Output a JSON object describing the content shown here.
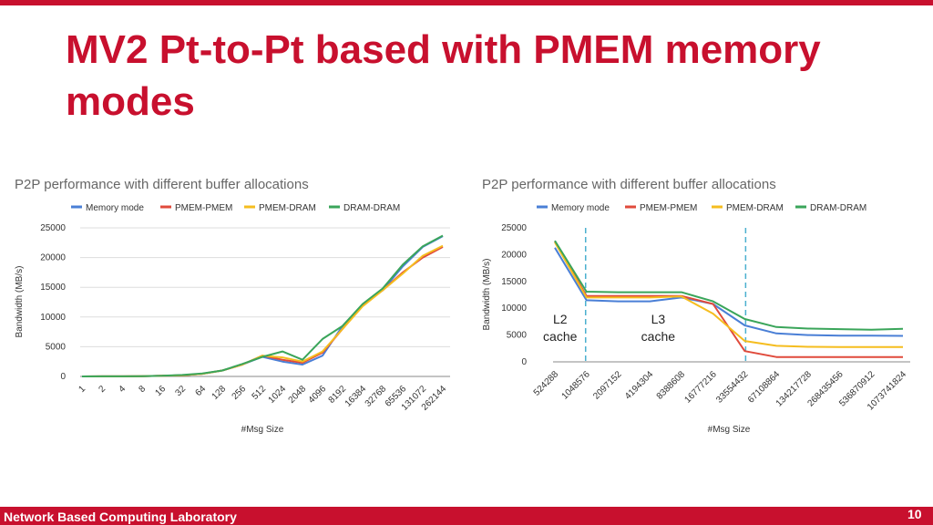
{
  "slide": {
    "title": "MV2 Pt-to-Pt based with PMEM memory modes",
    "footer": "Network Based Computing Laboratory",
    "page_number": "10"
  },
  "colors": {
    "brand": "#c8102e",
    "memory_mode": "#4a7fd6",
    "pmem_pmem": "#e04a3b",
    "pmem_dram": "#f5bd1f",
    "dram_dram": "#3aa55a"
  },
  "chart_data": [
    {
      "type": "line",
      "title": "P2P performance with different buffer allocations",
      "xlabel": "#Msg Size",
      "ylabel": "Bandwidth (MB/s)",
      "ylim": [
        0,
        25000
      ],
      "yticks": [
        0,
        5000,
        10000,
        15000,
        20000,
        25000
      ],
      "grid": true,
      "legend": "top",
      "categories": [
        "1",
        "2",
        "4",
        "8",
        "16",
        "32",
        "64",
        "128",
        "256",
        "512",
        "1024",
        "2048",
        "4096",
        "8192",
        "16384",
        "32768",
        "65536",
        "131072",
        "262144"
      ],
      "series": [
        {
          "name": "Memory mode",
          "color": "#4a7fd6",
          "values": [
            5,
            10,
            20,
            50,
            100,
            200,
            450,
            1000,
            2000,
            3300,
            2500,
            2000,
            3500,
            8500,
            12000,
            14500,
            18500,
            21800,
            23600
          ]
        },
        {
          "name": "PMEM-PMEM",
          "color": "#e04a3b",
          "values": [
            5,
            10,
            20,
            50,
            100,
            200,
            450,
            1000,
            2000,
            3500,
            2800,
            2300,
            4000,
            8000,
            12000,
            14500,
            17500,
            20000,
            21800
          ]
        },
        {
          "name": "PMEM-DRAM",
          "color": "#f5bd1f",
          "values": [
            5,
            10,
            20,
            50,
            100,
            200,
            450,
            1000,
            2000,
            3500,
            3200,
            2500,
            4200,
            8000,
            11800,
            14500,
            17300,
            20300,
            22000
          ]
        },
        {
          "name": "DRAM-DRAM",
          "color": "#3aa55a",
          "values": [
            5,
            10,
            20,
            50,
            100,
            250,
            500,
            1000,
            2100,
            3300,
            4200,
            2800,
            6300,
            8500,
            12200,
            14800,
            18800,
            21900,
            23700
          ]
        }
      ]
    },
    {
      "type": "line",
      "title": "P2P performance with different buffer allocations",
      "xlabel": "#Msg Size",
      "ylabel": "Bandwidth (MB/s)",
      "ylim": [
        0,
        25000
      ],
      "yticks": [
        0,
        5000,
        10000,
        15000,
        20000,
        25000
      ],
      "grid": false,
      "legend": "top",
      "categories": [
        "524288",
        "1048576",
        "2097152",
        "4194304",
        "8388608",
        "16777216",
        "33554432",
        "67108864",
        "134217728",
        "268435456",
        "536870912",
        "1073741824"
      ],
      "series": [
        {
          "name": "Memory mode",
          "color": "#4a7fd6",
          "values": [
            21300,
            11500,
            11300,
            11300,
            12000,
            10800,
            6800,
            5300,
            5000,
            4900,
            4900,
            4850
          ]
        },
        {
          "name": "PMEM-PMEM",
          "color": "#e04a3b",
          "values": [
            22500,
            12300,
            12300,
            12300,
            12300,
            10800,
            2000,
            900,
            900,
            900,
            900,
            900
          ]
        },
        {
          "name": "PMEM-DRAM",
          "color": "#f5bd1f",
          "values": [
            22300,
            12000,
            12000,
            12000,
            12200,
            9000,
            3900,
            3000,
            2800,
            2750,
            2750,
            2750
          ]
        },
        {
          "name": "DRAM-DRAM",
          "color": "#3aa55a",
          "values": [
            22600,
            13100,
            13000,
            13000,
            13000,
            11300,
            8000,
            6500,
            6200,
            6100,
            6000,
            6150
          ]
        }
      ],
      "annotations": [
        {
          "label": [
            "L2",
            "cache"
          ],
          "after_category": "1048576"
        },
        {
          "label": [
            "L3",
            "cache"
          ],
          "after_category": "33554432"
        }
      ]
    }
  ]
}
